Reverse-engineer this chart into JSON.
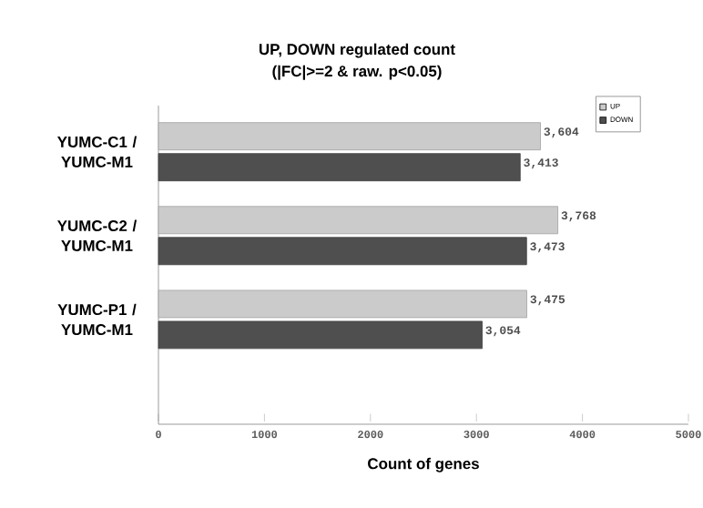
{
  "chart_data": {
    "type": "bar",
    "orientation": "horizontal",
    "title": "UP, DOWN regulated count",
    "subtitle": "(|FC|>=2 & raw. p<0.05)",
    "xlabel": "Count of genes",
    "categories": [
      "YUMC-C1 / YUMC-M1",
      "YUMC-C2 / YUMC-M1",
      "YUMC-P1 / YUMC-M1"
    ],
    "series": [
      {
        "name": "UP",
        "color": "#cbcbcb",
        "values": [
          3604,
          3768,
          3475
        ],
        "value_labels": [
          "3,604",
          "3,768",
          "3,475"
        ]
      },
      {
        "name": "DOWN",
        "color": "#4f4f4f",
        "values": [
          3413,
          3473,
          3054
        ],
        "value_labels": [
          "3,413",
          "3,473",
          "3,054"
        ]
      }
    ],
    "xlim": [
      0,
      5000
    ],
    "xticks": [
      0,
      1000,
      2000,
      3000,
      4000,
      5000
    ],
    "legend": "top right"
  }
}
